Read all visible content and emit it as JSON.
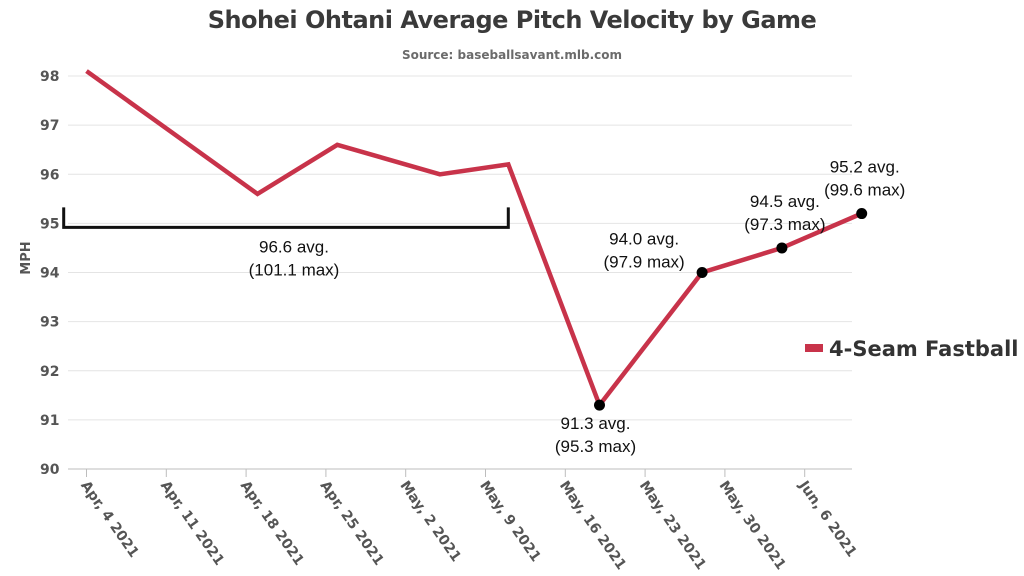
{
  "chart_data": {
    "type": "line",
    "title": "Shohei Ohtani Average Pitch Velocity by Game",
    "subtitle": "Source: baseballsavant.mlb.com",
    "ylabel": "MPH",
    "xlabel": "",
    "ylim": [
      90,
      98
    ],
    "y_ticks": [
      "90",
      "91",
      "92",
      "93",
      "94",
      "95",
      "96",
      "97",
      "98"
    ],
    "x_range": [
      "2021-04-04",
      "2021-06-11"
    ],
    "x_ticks": [
      {
        "date": "2021-04-04",
        "label": "Apr, 4 2021"
      },
      {
        "date": "2021-04-11",
        "label": "Apr, 11 2021"
      },
      {
        "date": "2021-04-18",
        "label": "Apr, 18 2021"
      },
      {
        "date": "2021-04-25",
        "label": "Apr, 25 2021"
      },
      {
        "date": "2021-05-02",
        "label": "May, 2 2021"
      },
      {
        "date": "2021-05-09",
        "label": "May, 9 2021"
      },
      {
        "date": "2021-05-16",
        "label": "May, 16 2021"
      },
      {
        "date": "2021-05-23",
        "label": "May, 23 2021"
      },
      {
        "date": "2021-05-30",
        "label": "May, 30 2021"
      },
      {
        "date": "2021-06-06",
        "label": "Jun, 6 2021"
      }
    ],
    "grid": "horizontal",
    "legend_position": "right",
    "series": [
      {
        "name": "4-Seam Fastball",
        "color": "#c8334a",
        "points": [
          {
            "x": "2021-04-04",
            "y": 98.1
          },
          {
            "x": "2021-04-19",
            "y": 95.6
          },
          {
            "x": "2021-04-26",
            "y": 96.6
          },
          {
            "x": "2021-05-05",
            "y": 96.0
          },
          {
            "x": "2021-05-11",
            "y": 96.2
          },
          {
            "x": "2021-05-19",
            "y": 91.3
          },
          {
            "x": "2021-05-28",
            "y": 94.0
          },
          {
            "x": "2021-06-04",
            "y": 94.5
          },
          {
            "x": "2021-06-11",
            "y": 95.2
          }
        ]
      }
    ],
    "annotations": [
      {
        "line1": "96.6 avg.",
        "line2": "(101.1 max)",
        "type": "bracket",
        "x_start": "2021-04-02",
        "x_end": "2021-05-11",
        "y": 95.0
      },
      {
        "line1": "91.3 avg.",
        "line2": "(95.3 max)",
        "type": "point",
        "x": "2021-05-19",
        "y": 91.3,
        "anchor": "below"
      },
      {
        "line1": "94.0 avg.",
        "line2": "(97.9 max)",
        "type": "point",
        "x": "2021-05-28",
        "y": 94.0,
        "anchor": "left"
      },
      {
        "line1": "94.5 avg.",
        "line2": "(97.3 max)",
        "type": "point",
        "x": "2021-06-04",
        "y": 94.5,
        "anchor": "above"
      },
      {
        "line1": "95.2 avg.",
        "line2": "(99.6 max)",
        "type": "point",
        "x": "2021-06-11",
        "y": 95.2,
        "anchor": "above"
      }
    ]
  }
}
